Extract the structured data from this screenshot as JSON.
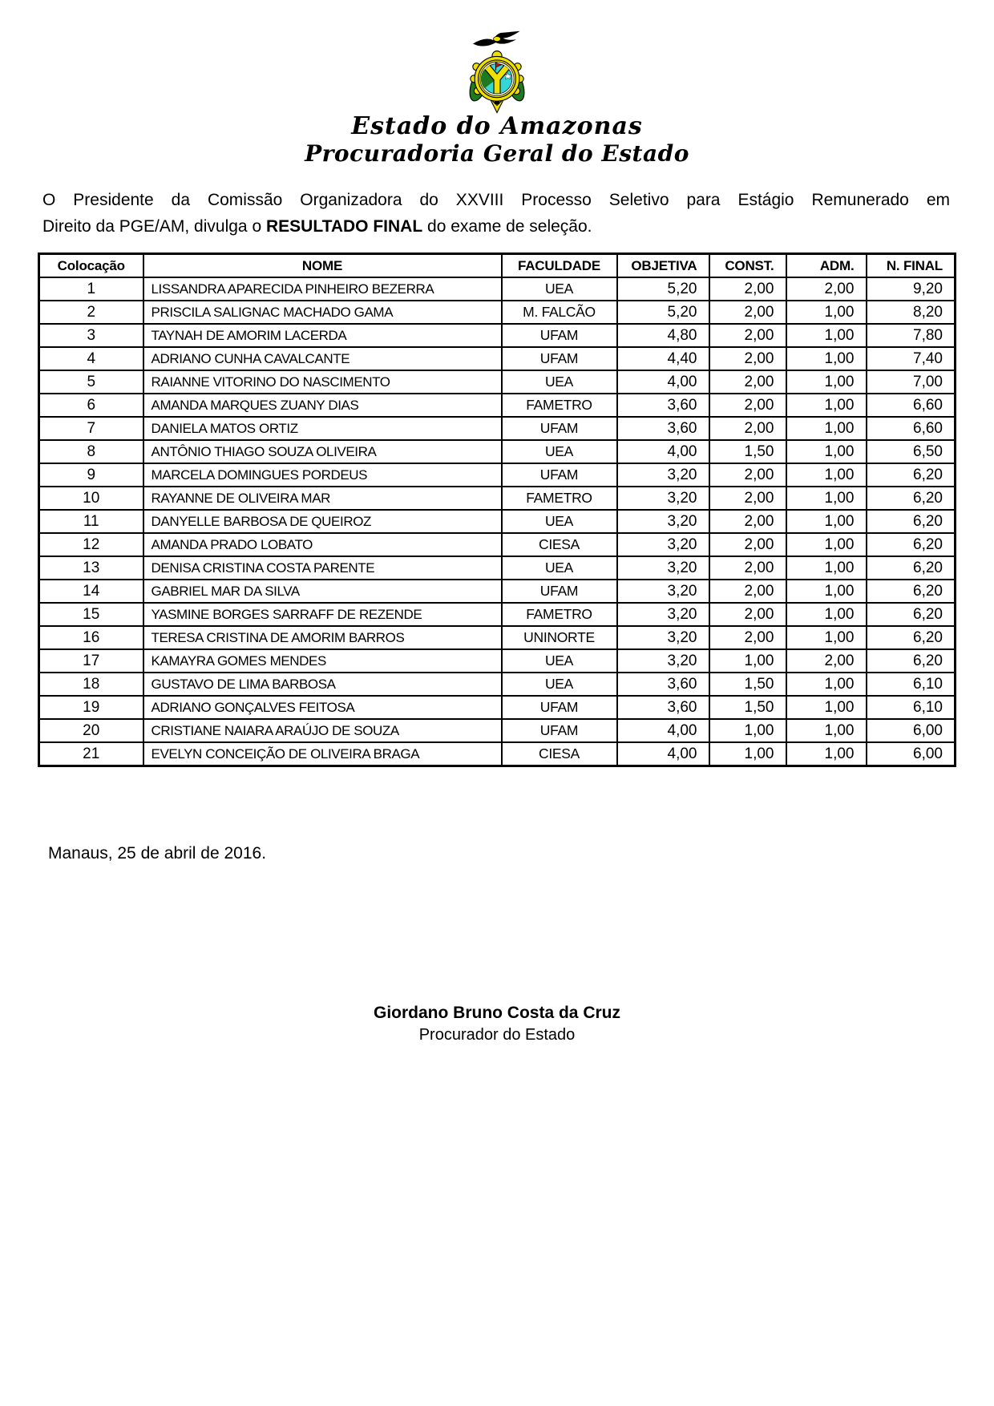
{
  "header": {
    "org_line1": "Estado do Amazonas",
    "org_line2": "Procuradoria Geral do Estado"
  },
  "logo": {
    "name": "amazonas-coat-of-arms",
    "colors": {
      "yellow": "#f0e000",
      "green": "#1f7a1f",
      "dark_green": "#145214",
      "cyan": "#35d6d6",
      "red": "#cc1111",
      "black": "#000000",
      "white": "#ffffff"
    }
  },
  "intro": {
    "line1": "O Presidente da Comissão Organizadora do XXVIII Processo Seletivo para Estágio Remunerado em",
    "line2_before_bold": "Direito da PGE/AM, divulga o ",
    "bold": "RESULTADO FINAL",
    "line2_after_bold": " do exame de seleção."
  },
  "table": {
    "headers": [
      "Colocação",
      "NOME",
      "FACULDADE",
      "OBJETIVA",
      "CONST.",
      "ADM.",
      "N. FINAL"
    ],
    "rows": [
      [
        "1",
        "LISSANDRA APARECIDA PINHEIRO BEZERRA",
        "UEA",
        "5,20",
        "2,00",
        "2,00",
        "9,20"
      ],
      [
        "2",
        "PRISCILA SALIGNAC MACHADO GAMA",
        "M. FALCÃO",
        "5,20",
        "2,00",
        "1,00",
        "8,20"
      ],
      [
        "3",
        "TAYNAH DE AMORIM LACERDA",
        "UFAM",
        "4,80",
        "2,00",
        "1,00",
        "7,80"
      ],
      [
        "4",
        "ADRIANO CUNHA CAVALCANTE",
        "UFAM",
        "4,40",
        "2,00",
        "1,00",
        "7,40"
      ],
      [
        "5",
        "RAIANNE VITORINO DO NASCIMENTO",
        "UEA",
        "4,00",
        "2,00",
        "1,00",
        "7,00"
      ],
      [
        "6",
        "AMANDA MARQUES ZUANY DIAS",
        "FAMETRO",
        "3,60",
        "2,00",
        "1,00",
        "6,60"
      ],
      [
        "7",
        "DANIELA MATOS ORTIZ",
        "UFAM",
        "3,60",
        "2,00",
        "1,00",
        "6,60"
      ],
      [
        "8",
        "ANTÔNIO THIAGO SOUZA OLIVEIRA",
        "UEA",
        "4,00",
        "1,50",
        "1,00",
        "6,50"
      ],
      [
        "9",
        "MARCELA DOMINGUES PORDEUS",
        "UFAM",
        "3,20",
        "2,00",
        "1,00",
        "6,20"
      ],
      [
        "10",
        "RAYANNE DE OLIVEIRA MAR",
        "FAMETRO",
        "3,20",
        "2,00",
        "1,00",
        "6,20"
      ],
      [
        "11",
        "DANYELLE BARBOSA DE QUEIROZ",
        "UEA",
        "3,20",
        "2,00",
        "1,00",
        "6,20"
      ],
      [
        "12",
        "AMANDA PRADO LOBATO",
        "CIESA",
        "3,20",
        "2,00",
        "1,00",
        "6,20"
      ],
      [
        "13",
        "DENISA CRISTINA COSTA PARENTE",
        "UEA",
        "3,20",
        "2,00",
        "1,00",
        "6,20"
      ],
      [
        "14",
        "GABRIEL MAR DA SILVA",
        "UFAM",
        "3,20",
        "2,00",
        "1,00",
        "6,20"
      ],
      [
        "15",
        "YASMINE BORGES SARRAFF DE REZENDE",
        "FAMETRO",
        "3,20",
        "2,00",
        "1,00",
        "6,20"
      ],
      [
        "16",
        "TERESA CRISTINA DE AMORIM BARROS",
        "UNINORTE",
        "3,20",
        "2,00",
        "1,00",
        "6,20"
      ],
      [
        "17",
        "KAMAYRA GOMES MENDES",
        "UEA",
        "3,20",
        "1,00",
        "2,00",
        "6,20"
      ],
      [
        "18",
        "GUSTAVO DE LIMA BARBOSA",
        "UEA",
        "3,60",
        "1,50",
        "1,00",
        "6,10"
      ],
      [
        "19",
        "ADRIANO GONÇALVES FEITOSA",
        "UFAM",
        "3,60",
        "1,50",
        "1,00",
        "6,10"
      ],
      [
        "20",
        "CRISTIANE NAIARA ARAÚJO DE SOUZA",
        "UFAM",
        "4,00",
        "1,00",
        "1,00",
        "6,00"
      ],
      [
        "21",
        "EVELYN CONCEIÇÃO DE OLIVEIRA BRAGA",
        "CIESA",
        "4,00",
        "1,00",
        "1,00",
        "6,00"
      ]
    ]
  },
  "footer": {
    "date_line": "Manaus, 25 de abril de 2016.",
    "signature_name": "Giordano Bruno Costa da Cruz",
    "signature_title": "Procurador do Estado"
  }
}
